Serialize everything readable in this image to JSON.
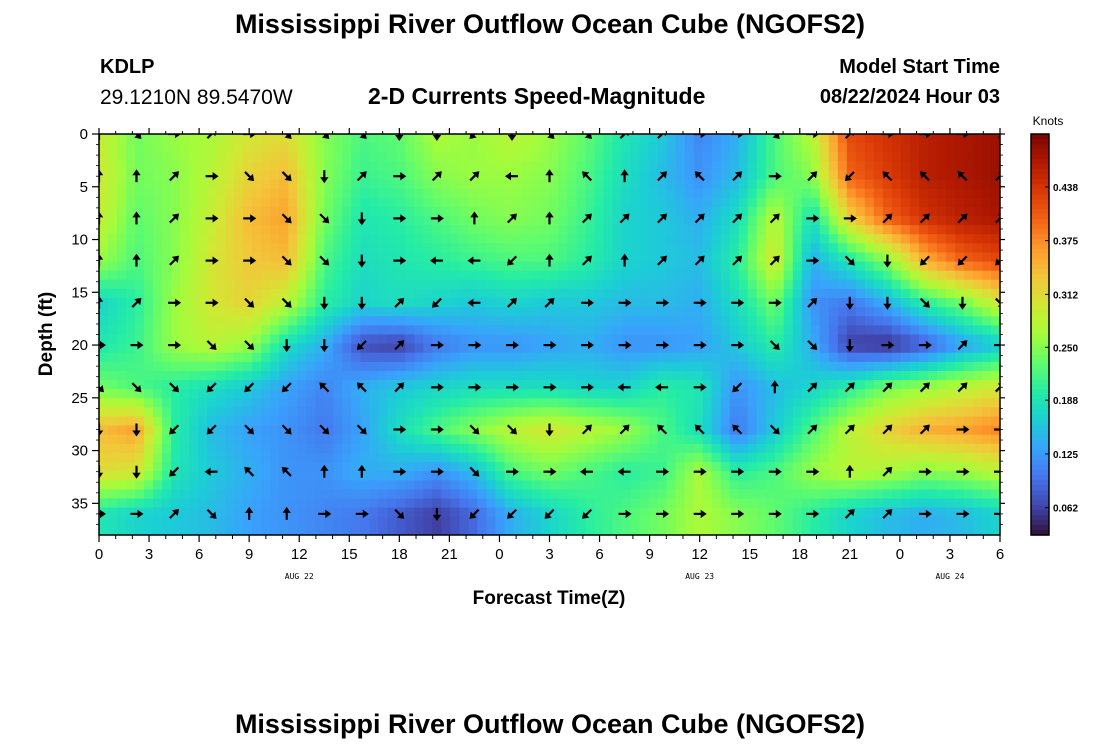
{
  "header": {
    "title": "Mississippi River Outflow Ocean Cube (NGOFS2)",
    "station_id": "KDLP",
    "station_coords": "29.1210N  89.5470W",
    "subtitle": "2-D Currents Speed-Magnitude",
    "model_start_label": "Model Start Time",
    "model_start_value": "08/22/2024 Hour 03"
  },
  "footer": {
    "title": "Mississippi River Outflow Ocean Cube (NGOFS2)"
  },
  "colors": {
    "scale": [
      "#30123b",
      "#4145ab",
      "#4675ed",
      "#39a2fc",
      "#1bcfd4",
      "#24eca6",
      "#61fc6c",
      "#a4fc3b",
      "#d1e834",
      "#f3c63a",
      "#fe9b2d",
      "#f36315",
      "#d93806",
      "#b11901",
      "#7a0403"
    ],
    "arrow": "#000000"
  },
  "chart_data": {
    "type": "heatmap",
    "xlabel": "Forecast Time(Z)",
    "ylabel": "Depth (ft)",
    "x_tick_labels": [
      "0",
      "3",
      "6",
      "9",
      "12",
      "15",
      "18",
      "21",
      "0",
      "3",
      "6",
      "9",
      "12",
      "15",
      "18",
      "21",
      "0",
      "3",
      "6"
    ],
    "date_labels": [
      {
        "label": "AUG 22",
        "tick_index": 4
      },
      {
        "label": "AUG 23",
        "tick_index": 12
      },
      {
        "label": "AUG 24",
        "tick_index": 17
      }
    ],
    "y_tick_labels": [
      "0",
      "5",
      "10",
      "15",
      "20",
      "25",
      "30",
      "35"
    ],
    "ylim": [
      0,
      38
    ],
    "colorbar": {
      "label": "Knots",
      "tick_labels": [
        "0.062",
        "0.125",
        "0.188",
        "0.250",
        "0.312",
        "0.375",
        "0.438"
      ],
      "range": [
        0.03,
        0.5
      ]
    },
    "depth_levels": [
      0,
      4,
      8,
      12,
      16,
      20,
      24,
      28,
      32,
      36
    ],
    "speed_grid": [
      [
        0.29,
        0.24,
        0.26,
        0.27,
        0.3,
        0.31,
        0.25,
        0.22,
        0.23,
        0.27,
        0.26,
        0.28,
        0.26,
        0.23,
        0.19,
        0.16,
        0.11,
        0.14,
        0.22,
        0.28,
        0.42,
        0.44,
        0.46,
        0.47,
        0.48
      ],
      [
        0.3,
        0.24,
        0.25,
        0.28,
        0.32,
        0.34,
        0.25,
        0.21,
        0.22,
        0.25,
        0.26,
        0.26,
        0.25,
        0.22,
        0.18,
        0.15,
        0.12,
        0.15,
        0.22,
        0.25,
        0.4,
        0.43,
        0.46,
        0.47,
        0.48
      ],
      [
        0.29,
        0.23,
        0.25,
        0.29,
        0.34,
        0.36,
        0.24,
        0.19,
        0.2,
        0.22,
        0.24,
        0.25,
        0.24,
        0.21,
        0.17,
        0.16,
        0.14,
        0.18,
        0.28,
        0.18,
        0.32,
        0.4,
        0.44,
        0.46,
        0.47
      ],
      [
        0.26,
        0.22,
        0.25,
        0.3,
        0.33,
        0.34,
        0.22,
        0.18,
        0.19,
        0.2,
        0.21,
        0.22,
        0.22,
        0.2,
        0.17,
        0.16,
        0.15,
        0.2,
        0.3,
        0.14,
        0.19,
        0.25,
        0.35,
        0.4,
        0.42
      ],
      [
        0.17,
        0.2,
        0.26,
        0.3,
        0.32,
        0.28,
        0.2,
        0.17,
        0.18,
        0.17,
        0.16,
        0.17,
        0.16,
        0.16,
        0.15,
        0.15,
        0.14,
        0.18,
        0.24,
        0.12,
        0.1,
        0.14,
        0.2,
        0.24,
        0.3
      ],
      [
        0.19,
        0.21,
        0.26,
        0.28,
        0.26,
        0.18,
        0.14,
        0.07,
        0.06,
        0.1,
        0.12,
        0.12,
        0.13,
        0.14,
        0.12,
        0.12,
        0.13,
        0.16,
        0.2,
        0.14,
        0.06,
        0.05,
        0.08,
        0.13,
        0.16
      ],
      [
        0.24,
        0.22,
        0.2,
        0.18,
        0.16,
        0.13,
        0.11,
        0.14,
        0.16,
        0.17,
        0.18,
        0.18,
        0.18,
        0.17,
        0.17,
        0.2,
        0.19,
        0.12,
        0.15,
        0.17,
        0.2,
        0.24,
        0.26,
        0.28,
        0.3
      ],
      [
        0.34,
        0.36,
        0.2,
        0.15,
        0.13,
        0.12,
        0.1,
        0.13,
        0.18,
        0.22,
        0.25,
        0.28,
        0.3,
        0.28,
        0.26,
        0.22,
        0.18,
        0.1,
        0.16,
        0.22,
        0.28,
        0.32,
        0.35,
        0.36,
        0.38
      ],
      [
        0.31,
        0.3,
        0.19,
        0.16,
        0.14,
        0.12,
        0.12,
        0.14,
        0.14,
        0.12,
        0.15,
        0.22,
        0.24,
        0.22,
        0.2,
        0.21,
        0.27,
        0.2,
        0.22,
        0.26,
        0.28,
        0.27,
        0.25,
        0.26,
        0.28
      ],
      [
        0.19,
        0.17,
        0.16,
        0.15,
        0.13,
        0.12,
        0.11,
        0.1,
        0.08,
        0.06,
        0.09,
        0.14,
        0.17,
        0.2,
        0.22,
        0.24,
        0.27,
        0.25,
        0.23,
        0.2,
        0.17,
        0.15,
        0.14,
        0.15,
        0.17
      ]
    ],
    "vector_depths": [
      0,
      4,
      8,
      12,
      16,
      20,
      24,
      28,
      32,
      36
    ],
    "vector_directions_deg": [
      [
        0,
        135,
        90,
        45,
        90,
        135,
        135,
        135,
        180,
        180,
        225,
        180,
        135,
        135,
        45,
        45,
        90,
        90,
        135,
        90,
        45,
        90,
        90,
        90,
        135
      ],
      [
        0,
        0,
        45,
        90,
        135,
        135,
        180,
        45,
        90,
        45,
        45,
        270,
        0,
        315,
        0,
        45,
        315,
        45,
        90,
        45,
        225,
        315,
        315,
        315,
        45
      ],
      [
        0,
        0,
        45,
        90,
        90,
        135,
        135,
        180,
        90,
        90,
        0,
        45,
        0,
        45,
        45,
        45,
        45,
        45,
        45,
        90,
        90,
        45,
        45,
        45,
        45
      ],
      [
        0,
        0,
        45,
        90,
        90,
        135,
        135,
        180,
        90,
        270,
        270,
        225,
        0,
        45,
        0,
        45,
        45,
        45,
        45,
        90,
        135,
        180,
        225,
        225,
        225
      ],
      [
        0,
        45,
        90,
        90,
        135,
        135,
        180,
        180,
        45,
        225,
        270,
        45,
        45,
        90,
        90,
        90,
        90,
        90,
        90,
        45,
        180,
        180,
        135,
        180,
        135
      ],
      [
        90,
        90,
        90,
        135,
        135,
        180,
        180,
        225,
        45,
        90,
        90,
        90,
        90,
        90,
        90,
        90,
        90,
        90,
        135,
        135,
        180,
        90,
        90,
        45,
        90
      ],
      [
        135,
        135,
        135,
        225,
        225,
        225,
        315,
        315,
        45,
        90,
        90,
        90,
        90,
        90,
        270,
        270,
        90,
        225,
        0,
        45,
        45,
        45,
        45,
        45,
        45
      ],
      [
        180,
        180,
        225,
        225,
        135,
        135,
        135,
        135,
        90,
        90,
        135,
        135,
        180,
        45,
        45,
        315,
        315,
        315,
        135,
        45,
        45,
        45,
        45,
        90,
        90
      ],
      [
        180,
        180,
        225,
        270,
        315,
        315,
        0,
        0,
        90,
        90,
        135,
        90,
        90,
        270,
        270,
        90,
        90,
        90,
        90,
        90,
        0,
        45,
        90,
        90,
        90
      ],
      [
        90,
        90,
        45,
        135,
        0,
        0,
        90,
        90,
        135,
        180,
        225,
        225,
        225,
        225,
        90,
        90,
        90,
        90,
        90,
        90,
        45,
        45,
        90,
        90,
        90
      ]
    ]
  }
}
